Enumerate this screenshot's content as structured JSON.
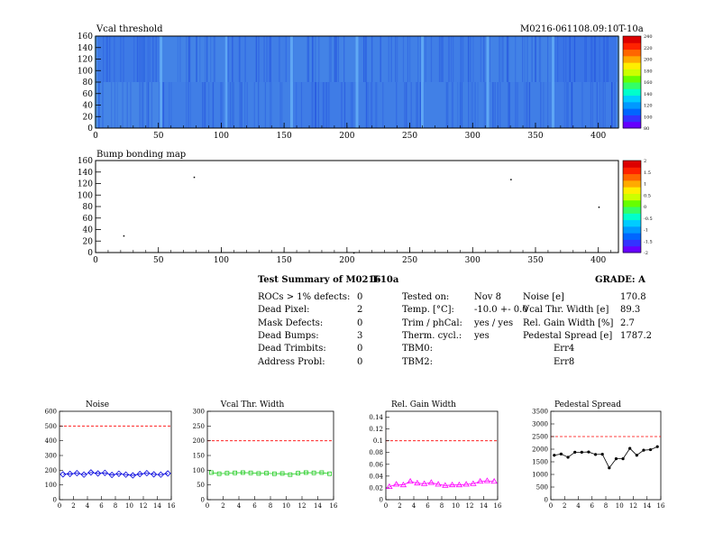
{
  "maps": [
    {
      "title": "Vcal threshold",
      "module_label": "M0216-061108.09:10T-10a",
      "x_ticks": [
        0,
        50,
        100,
        150,
        200,
        250,
        300,
        350,
        400
      ],
      "y_ticks": [
        0,
        20,
        40,
        60,
        80,
        100,
        120,
        140,
        160
      ],
      "xlim": [
        0,
        416
      ],
      "ylim": [
        0,
        160
      ],
      "scale_labels": [
        "80",
        "100",
        "120",
        "140",
        "160",
        "180",
        "200",
        "220",
        "240"
      ]
    },
    {
      "title": "Bump bonding map",
      "x_ticks": [
        0,
        50,
        100,
        150,
        200,
        250,
        300,
        350,
        400
      ],
      "y_ticks": [
        0,
        20,
        40,
        60,
        80,
        100,
        120,
        140,
        160
      ],
      "xlim": [
        0,
        416
      ],
      "ylim": [
        0,
        160
      ],
      "scale_labels": [
        "-2",
        "-1.5",
        "-1",
        "-0.5",
        "0",
        "0.5",
        "1",
        "1.5",
        "2"
      ]
    }
  ],
  "summary": {
    "title": "Test Summary of M0216",
    "code": "T-10a",
    "grade": "GRADE:  A",
    "left": [
      {
        "label": "ROCs > 1% defects:",
        "value": "0"
      },
      {
        "label": "Dead Pixel:",
        "value": "2"
      },
      {
        "label": "Mask Defects:",
        "value": "0"
      },
      {
        "label": "Dead Bumps:",
        "value": "3"
      },
      {
        "label": "Dead Trimbits:",
        "value": "0"
      },
      {
        "label": "Address Probl:",
        "value": "0"
      }
    ],
    "mid": [
      {
        "label": "Tested on:",
        "value": "Nov 8"
      },
      {
        "label": "Temp. [°C]:",
        "value": "-10.0 +- 0.0"
      },
      {
        "label": "Trim / phCal:",
        "value": "yes / yes"
      },
      {
        "label": "Therm. cycl.:",
        "value": "yes"
      },
      {
        "label": "TBM0:",
        "value": "Err4"
      },
      {
        "label": "TBM2:",
        "value": "Err8"
      }
    ],
    "right": [
      {
        "label": "Noise [e]",
        "value": "170.8"
      },
      {
        "label": "Vcal Thr. Width [e]",
        "value": "89.3"
      },
      {
        "label": "Rel. Gain Width [%]",
        "value": "2.7"
      },
      {
        "label": "Pedestal Spread [e]",
        "value": "1787.2"
      }
    ]
  },
  "colors": {
    "noise": "#0000dd",
    "vcal": "#22cc22",
    "gain": "#ff00ff",
    "pedestal": "#000000",
    "limit": "#ff0000"
  },
  "chart_data": [
    {
      "type": "line",
      "title": "Noise",
      "x": [
        0,
        1,
        2,
        3,
        4,
        5,
        6,
        7,
        8,
        9,
        10,
        11,
        12,
        13,
        14,
        15
      ],
      "values": [
        172,
        175,
        180,
        170,
        185,
        178,
        182,
        168,
        176,
        170,
        165,
        174,
        180,
        172,
        170,
        178
      ],
      "limit": 500,
      "xlim": [
        0,
        16
      ],
      "ylim": [
        0,
        600
      ],
      "x_ticks": [
        0,
        2,
        4,
        6,
        8,
        10,
        12,
        14,
        16
      ],
      "y_ticks": [
        0,
        100,
        200,
        300,
        400,
        500,
        600
      ],
      "marker": "diamond",
      "color_key": "noise"
    },
    {
      "type": "line",
      "title": "Vcal Thr. Width",
      "x": [
        0,
        1,
        2,
        3,
        4,
        5,
        6,
        7,
        8,
        9,
        10,
        11,
        12,
        13,
        14,
        15
      ],
      "values": [
        92,
        88,
        90,
        91,
        92,
        91,
        89,
        90,
        88,
        89,
        85,
        90,
        92,
        91,
        92,
        88
      ],
      "limit": 200,
      "xlim": [
        0,
        16
      ],
      "ylim": [
        0,
        300
      ],
      "x_ticks": [
        0,
        2,
        4,
        6,
        8,
        10,
        12,
        14,
        16
      ],
      "y_ticks": [
        0,
        50,
        100,
        150,
        200,
        250,
        300
      ],
      "marker": "square",
      "color_key": "vcal"
    },
    {
      "type": "line",
      "title": "Rel. Gain Width",
      "x": [
        0,
        1,
        2,
        3,
        4,
        5,
        6,
        7,
        8,
        9,
        10,
        11,
        12,
        13,
        14,
        15
      ],
      "values": [
        0.022,
        0.026,
        0.025,
        0.031,
        0.028,
        0.027,
        0.029,
        0.026,
        0.024,
        0.025,
        0.025,
        0.026,
        0.027,
        0.031,
        0.032,
        0.031
      ],
      "limit": 0.1,
      "xlim": [
        0,
        16
      ],
      "ylim": [
        0,
        0.15
      ],
      "x_ticks": [
        0,
        2,
        4,
        6,
        8,
        10,
        12,
        14,
        16
      ],
      "y_ticks": [
        0,
        0.02,
        0.04,
        0.06,
        0.08,
        0.1,
        0.12,
        0.14
      ],
      "marker": "triangle",
      "color_key": "gain"
    },
    {
      "type": "line",
      "title": "Pedestal Spread",
      "x": [
        0,
        1,
        2,
        3,
        4,
        5,
        6,
        7,
        8,
        9,
        10,
        11,
        12,
        13,
        14,
        15
      ],
      "values": [
        1760,
        1810,
        1680,
        1880,
        1880,
        1890,
        1790,
        1800,
        1260,
        1620,
        1620,
        2030,
        1760,
        1960,
        1980,
        2100
      ],
      "limit": 2500,
      "xlim": [
        0,
        16
      ],
      "ylim": [
        0,
        3500
      ],
      "x_ticks": [
        0,
        2,
        4,
        6,
        8,
        10,
        12,
        14,
        16
      ],
      "y_ticks": [
        0,
        500,
        1000,
        1500,
        2000,
        2500,
        3000,
        3500
      ],
      "marker": "dot",
      "color_key": "pedestal"
    }
  ]
}
